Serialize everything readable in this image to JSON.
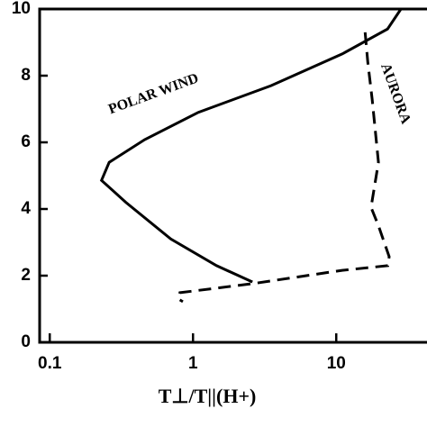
{
  "chart_data": {
    "type": "line",
    "xlabel": "T⊥/T||(H+)",
    "xlog": true,
    "xlim": [
      0.085,
      43
    ],
    "xticks": [
      0.1,
      1,
      10
    ],
    "ylim": [
      0,
      10
    ],
    "yticks": [
      0,
      2,
      4,
      6,
      8,
      10
    ],
    "series": [
      {
        "name": "POLAR WIND",
        "color": "#000000",
        "dash": false,
        "x": [
          2.6,
          1.46,
          0.7,
          0.34,
          0.23,
          0.26,
          0.46,
          1.09,
          3.5,
          11,
          22.8,
          28.3
        ],
        "values": [
          1.81,
          2.3,
          3.1,
          4.2,
          4.86,
          5.4,
          6.08,
          6.9,
          7.7,
          8.65,
          9.4,
          10
        ]
      },
      {
        "name": "AURORA",
        "color": "#000000",
        "dash": true,
        "x": [
          15.9,
          16.6,
          17.8,
          19.7,
          17.5,
          19.7,
          23.4,
          22.9,
          11,
          2.6,
          0.81,
          0.79,
          0.85
        ],
        "values": [
          9.3,
          8.4,
          7.3,
          5.4,
          4.05,
          3.5,
          2.57,
          2.3,
          2.16,
          1.76,
          1.49,
          1.3,
          1.22
        ]
      }
    ]
  }
}
